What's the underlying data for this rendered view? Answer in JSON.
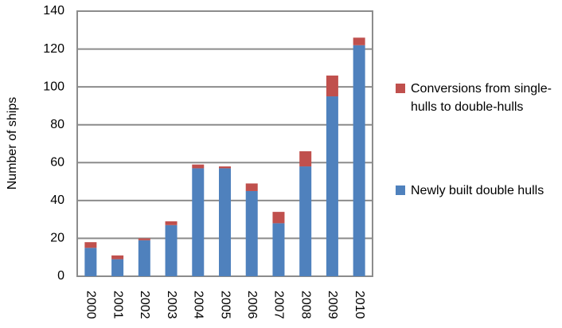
{
  "chart_data": {
    "type": "stacked_bar",
    "y_label": "Number of ships",
    "categories": [
      "2000",
      "2001",
      "2002",
      "2003",
      "2004",
      "2005",
      "2006",
      "2007",
      "2008",
      "2009",
      "2010"
    ],
    "series": [
      {
        "name": "Newly built double hulls",
        "color": "#4f81bd",
        "values": [
          15,
          9,
          19,
          27,
          57,
          57,
          45,
          28,
          58,
          95,
          122
        ]
      },
      {
        "name": "Conversions from single-hulls to double-hulls",
        "color": "#c0504d",
        "values": [
          3,
          2,
          1,
          2,
          2,
          1,
          4,
          6,
          8,
          11,
          4
        ]
      }
    ],
    "ylim": [
      0,
      140
    ],
    "yticks": [
      0,
      20,
      40,
      60,
      80,
      100,
      120,
      140
    ],
    "grid": true,
    "legend": "right"
  }
}
